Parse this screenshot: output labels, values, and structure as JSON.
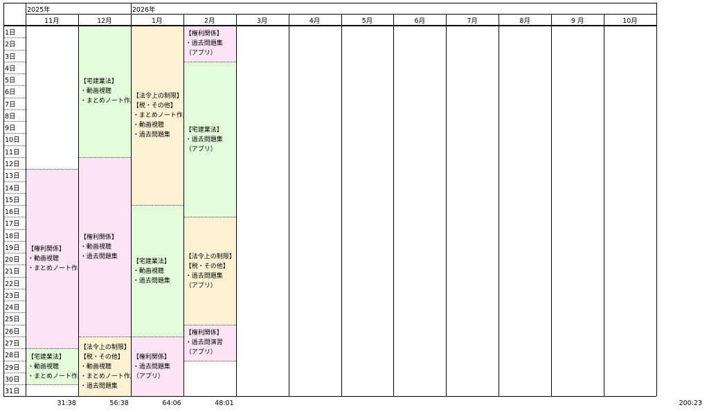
{
  "header": {
    "years": [
      "2025年",
      "2026年"
    ],
    "months": [
      "11月",
      "12月",
      "1月",
      "2月",
      "3月",
      "4月",
      "5月",
      "6月",
      "7月",
      "8月",
      "9 月",
      "10月"
    ]
  },
  "days": [
    "1日",
    "2日",
    "3日",
    "4日",
    "5日",
    "6日",
    "7日",
    "8日",
    "9日",
    "10日",
    "11日",
    "12日",
    "13日",
    "14日",
    "15日",
    "16日",
    "17日",
    "18日",
    "19日",
    "20日",
    "21日",
    "22日",
    "23日",
    "24日",
    "25日",
    "26日",
    "27日",
    "28日",
    "29日",
    "30日",
    "31日"
  ],
  "columns": [
    {
      "blocks": [
        {
          "lines": [
            "【権利関係】",
            "・動画視聴",
            "・まとめノート作成"
          ]
        },
        {
          "lines": [
            "【宅建業法】",
            "・動画視聴",
            "・まとめノート作成"
          ]
        }
      ]
    },
    {
      "blocks": [
        {
          "lines": [
            "【宅建業法】",
            "・動画視聴",
            "・まとめノート作成"
          ]
        },
        {
          "lines": [
            "【権利関係】",
            "・動画視聴",
            "・過去問題集"
          ]
        },
        {
          "lines": [
            "【法令上の制限】",
            "【税・その他】",
            "・動画視聴",
            "・まとめノート作成",
            "・過去問題集"
          ]
        }
      ]
    },
    {
      "blocks": [
        {
          "lines": [
            "【法令上の制限】",
            "【税・その他】",
            "・まとめノート作成",
            "・動画視聴",
            "・過去問題集"
          ]
        },
        {
          "lines": [
            "【宅建業法】",
            "・動画視聴",
            "・過去問題集"
          ]
        },
        {
          "lines": [
            "【権利関係】",
            "・過去問題集",
            "（アプリ）"
          ]
        }
      ]
    },
    {
      "blocks": [
        {
          "lines": [
            "【権利関係】",
            "・過去問題集",
            "（アプリ）"
          ]
        },
        {
          "lines": [
            "【宅建業法】",
            "・過去問題集",
            "（アプリ）"
          ]
        },
        {
          "lines": [
            "【法令上の制限】",
            "【税・その他】",
            "・過去問題集",
            "（アプリ）"
          ]
        },
        {
          "lines": [
            "【権利関係】",
            "・過去問演習",
            "（アプリ）"
          ]
        }
      ]
    }
  ],
  "totals": {
    "months": [
      "31:38",
      "56:38",
      "64:06",
      "48:01"
    ],
    "grand": "200:23"
  }
}
